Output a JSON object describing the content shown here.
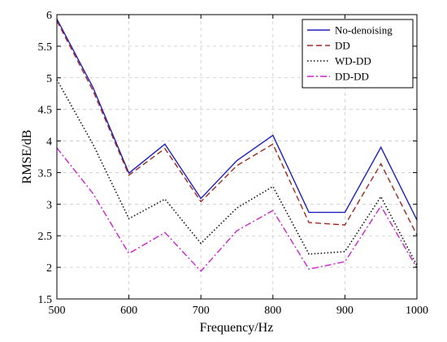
{
  "chart_data": {
    "type": "line",
    "xlabel": "Frequency/Hz",
    "ylabel": "RMSE/dB",
    "xlim": [
      500,
      1000
    ],
    "ylim": [
      1.5,
      6
    ],
    "x_ticks": [
      500,
      600,
      700,
      800,
      900,
      1000
    ],
    "y_ticks": [
      1.5,
      2,
      2.5,
      3,
      3.5,
      4,
      4.5,
      5,
      5.5,
      6
    ],
    "grid": true,
    "legend_position": "top-right",
    "x": [
      500,
      550,
      600,
      650,
      700,
      750,
      800,
      850,
      900,
      950,
      1000
    ],
    "series": [
      {
        "name": "No-denoising",
        "color": "#1f1fbf",
        "style": "solid",
        "values": [
          5.93,
          4.85,
          3.49,
          3.95,
          3.09,
          3.69,
          4.09,
          2.87,
          2.87,
          3.9,
          2.75
        ]
      },
      {
        "name": "DD",
        "color": "#a0281e",
        "style": "dashed",
        "values": [
          5.9,
          4.8,
          3.46,
          3.88,
          3.04,
          3.61,
          3.95,
          2.71,
          2.67,
          3.64,
          2.51
        ]
      },
      {
        "name": "WD-DD",
        "color": "#111111",
        "style": "dotted",
        "values": [
          4.97,
          3.95,
          2.77,
          3.08,
          2.38,
          2.94,
          3.28,
          2.21,
          2.25,
          3.12,
          2.03
        ]
      },
      {
        "name": "DD-DD",
        "color": "#cc22cc",
        "style": "dashdot",
        "values": [
          3.89,
          3.17,
          2.22,
          2.55,
          1.94,
          2.58,
          2.9,
          1.97,
          2.09,
          2.97,
          1.99
        ]
      }
    ]
  }
}
